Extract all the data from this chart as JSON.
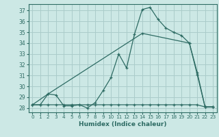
{
  "xlabel": "Humidex (Indice chaleur)",
  "bg_color": "#cce8e5",
  "grid_color": "#aaccca",
  "line_color": "#2d6b63",
  "xlim": [
    -0.5,
    23.5
  ],
  "ylim": [
    27.6,
    37.6
  ],
  "xticks": [
    0,
    1,
    2,
    3,
    4,
    5,
    6,
    7,
    8,
    9,
    10,
    11,
    12,
    13,
    14,
    15,
    16,
    17,
    18,
    19,
    20,
    21,
    22,
    23
  ],
  "yticks": [
    28,
    29,
    30,
    31,
    32,
    33,
    34,
    35,
    36,
    37
  ],
  "line1_x": [
    0,
    1,
    2,
    3,
    4,
    5,
    6,
    7,
    8,
    9,
    10,
    11,
    12,
    13,
    14,
    15,
    16,
    17,
    18,
    19,
    20,
    21,
    22,
    23
  ],
  "line1_y": [
    28.3,
    28.3,
    29.3,
    29.2,
    28.2,
    28.2,
    28.3,
    28.0,
    28.5,
    29.6,
    30.8,
    33.0,
    31.7,
    34.8,
    37.1,
    37.3,
    36.2,
    35.4,
    35.0,
    34.7,
    34.0,
    31.3,
    28.1,
    28.1
  ],
  "line2_x": [
    0,
    2,
    14,
    20,
    21,
    22,
    23
  ],
  "line2_y": [
    28.3,
    29.3,
    34.9,
    34.0,
    31.1,
    28.1,
    28.1
  ],
  "line3_x": [
    0,
    1,
    2,
    3,
    4,
    5,
    6,
    7,
    8,
    9,
    10,
    11,
    12,
    13,
    14,
    15,
    16,
    17,
    18,
    19,
    20,
    21,
    22,
    23
  ],
  "line3_y": [
    28.3,
    28.3,
    28.3,
    28.3,
    28.3,
    28.3,
    28.3,
    28.3,
    28.3,
    28.3,
    28.3,
    28.3,
    28.3,
    28.3,
    28.3,
    28.3,
    28.3,
    28.3,
    28.3,
    28.3,
    28.3,
    28.3,
    28.1,
    28.1
  ]
}
